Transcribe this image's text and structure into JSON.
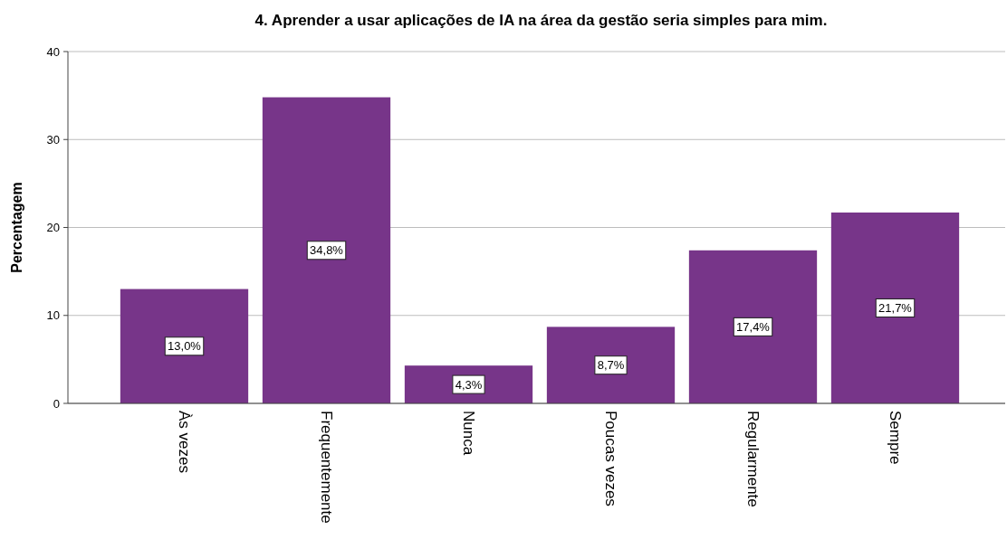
{
  "chart_data": {
    "type": "bar",
    "title": "4. Aprender a usar aplicações de IA na área da gestão seria simples para mim.",
    "ylabel": "Percentagem",
    "categories": [
      "Às vezes",
      "Frequentemente",
      "Nunca",
      "Poucas vezes",
      "Regularmente",
      "Sempre"
    ],
    "values": [
      13.0,
      34.8,
      4.3,
      8.7,
      17.4,
      21.7
    ],
    "value_labels": [
      "13,0%",
      "34,8%",
      "4,3%",
      "8,7%",
      "17,4%",
      "21,7%"
    ],
    "color": "#773589",
    "ylim": [
      0,
      40
    ],
    "yticks": [
      0,
      10,
      20,
      30,
      40
    ],
    "grid": "y"
  }
}
